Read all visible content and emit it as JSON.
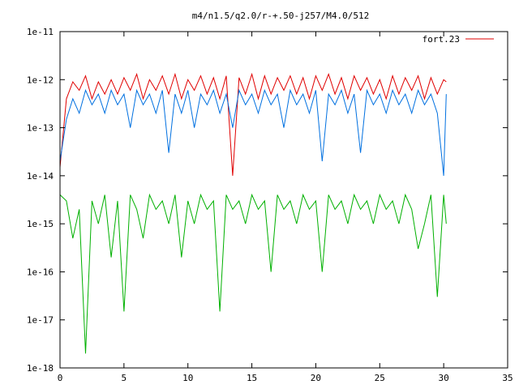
{
  "chart_data": {
    "type": "line",
    "title": "m4/n1.5/q2.0/r-+.50-j257/M4.0/512",
    "xlabel": "",
    "ylabel": "",
    "xlim": [
      0,
      35
    ],
    "ylim": [
      1e-18,
      1e-11
    ],
    "y_scale": "log",
    "grid": false,
    "legend_position": "top-right",
    "x_ticks": [
      0,
      5,
      10,
      15,
      20,
      25,
      30,
      35
    ],
    "x_tick_labels": [
      "0",
      "5",
      "10",
      "15",
      "20",
      "25",
      "30",
      "35"
    ],
    "y_ticks": [
      1e-18,
      1e-17,
      1e-16,
      1e-15,
      1e-14,
      1e-13,
      1e-12,
      1e-11
    ],
    "y_tick_labels": [
      "1e-18",
      "1e-17",
      "1e-16",
      "1e-15",
      "1e-14",
      "1e-13",
      "1e-12",
      "1e-11"
    ],
    "series": [
      {
        "name": "fort.23",
        "color": "#e00000",
        "x": [
          0,
          0.5,
          1,
          1.5,
          2,
          2.5,
          3,
          3.5,
          4,
          4.5,
          5,
          5.5,
          6,
          6.5,
          7,
          7.5,
          8,
          8.5,
          9,
          9.5,
          10,
          10.5,
          11,
          11.5,
          12,
          12.5,
          13,
          13.5,
          14,
          14.5,
          15,
          15.5,
          16,
          16.5,
          17,
          17.5,
          18,
          18.5,
          19,
          19.5,
          20,
          20.5,
          21,
          21.5,
          22,
          22.5,
          23,
          23.5,
          24,
          24.5,
          25,
          25.5,
          26,
          26.5,
          27,
          27.5,
          28,
          28.5,
          29,
          29.5,
          30,
          30.2
        ],
        "y": [
          1.5e-14,
          4e-13,
          9e-13,
          6e-13,
          1.2e-12,
          4e-13,
          9e-13,
          5e-13,
          1e-12,
          5e-13,
          1.1e-12,
          6e-13,
          1.3e-12,
          4e-13,
          1e-12,
          6e-13,
          1.2e-12,
          5e-13,
          1.3e-12,
          4e-13,
          1e-12,
          6e-13,
          1.2e-12,
          5e-13,
          1.1e-12,
          4e-13,
          1.2e-12,
          1e-14,
          1.1e-12,
          5e-13,
          1.3e-12,
          4e-13,
          1.2e-12,
          5e-13,
          1.1e-12,
          6e-13,
          1.2e-12,
          5e-13,
          1.1e-12,
          4e-13,
          1.2e-12,
          6e-13,
          1.3e-12,
          5e-13,
          1.1e-12,
          4e-13,
          1.2e-12,
          6e-13,
          1.1e-12,
          5e-13,
          1e-12,
          4e-13,
          1.2e-12,
          5e-13,
          1.1e-12,
          6e-13,
          1.2e-12,
          4e-13,
          1.1e-12,
          5e-13,
          1e-12,
          9e-13
        ]
      },
      {
        "color": "#0070e0",
        "x": [
          0,
          0.5,
          1,
          1.5,
          2,
          2.5,
          3,
          3.5,
          4,
          4.5,
          5,
          5.5,
          6,
          6.5,
          7,
          7.5,
          8,
          8.5,
          9,
          9.5,
          10,
          10.5,
          11,
          11.5,
          12,
          12.5,
          13,
          13.5,
          14,
          14.5,
          15,
          15.5,
          16,
          16.5,
          17,
          17.5,
          18,
          18.5,
          19,
          19.5,
          20,
          20.5,
          21,
          21.5,
          22,
          22.5,
          23,
          23.5,
          24,
          24.5,
          25,
          25.5,
          26,
          26.5,
          27,
          27.5,
          28,
          28.5,
          29,
          29.5,
          30,
          30.2
        ],
        "y": [
          2e-14,
          1.5e-13,
          4e-13,
          2e-13,
          6e-13,
          3e-13,
          5e-13,
          2e-13,
          6e-13,
          3e-13,
          5e-13,
          1e-13,
          6e-13,
          3e-13,
          5e-13,
          2e-13,
          6e-13,
          3e-14,
          5e-13,
          2e-13,
          6e-13,
          1e-13,
          5e-13,
          3e-13,
          6e-13,
          2e-13,
          5e-13,
          1e-13,
          6e-13,
          3e-13,
          5e-13,
          2e-13,
          6e-13,
          3e-13,
          5e-13,
          1e-13,
          6e-13,
          3e-13,
          5e-13,
          2e-13,
          6e-13,
          2e-14,
          5e-13,
          3e-13,
          6e-13,
          2e-13,
          5e-13,
          3e-14,
          6e-13,
          3e-13,
          5e-13,
          2e-13,
          6e-13,
          3e-13,
          5e-13,
          2e-13,
          6e-13,
          3e-13,
          5e-13,
          2e-13,
          1e-14,
          5e-13
        ]
      },
      {
        "color": "#00b000",
        "x": [
          0,
          0.5,
          1,
          1.5,
          2,
          2.5,
          3,
          3.5,
          4,
          4.5,
          5,
          5.5,
          6,
          6.5,
          7,
          7.5,
          8,
          8.5,
          9,
          9.5,
          10,
          10.5,
          11,
          11.5,
          12,
          12.5,
          13,
          13.5,
          14,
          14.5,
          15,
          15.5,
          16,
          16.5,
          17,
          17.5,
          18,
          18.5,
          19,
          19.5,
          20,
          20.5,
          21,
          21.5,
          22,
          22.5,
          23,
          23.5,
          24,
          24.5,
          25,
          25.5,
          26,
          26.5,
          27,
          27.5,
          28,
          28.5,
          29,
          29.5,
          30,
          30.2
        ],
        "y": [
          4e-15,
          3e-15,
          5e-16,
          2e-15,
          2e-18,
          3e-15,
          1e-15,
          4e-15,
          2e-16,
          3e-15,
          1.5e-17,
          4e-15,
          2e-15,
          5e-16,
          4e-15,
          2e-15,
          3e-15,
          1e-15,
          4e-15,
          2e-16,
          3e-15,
          1e-15,
          4e-15,
          2e-15,
          3e-15,
          1.5e-17,
          4e-15,
          2e-15,
          3e-15,
          1e-15,
          4e-15,
          2e-15,
          3e-15,
          1e-16,
          4e-15,
          2e-15,
          3e-15,
          1e-15,
          4e-15,
          2e-15,
          3e-15,
          1e-16,
          4e-15,
          2e-15,
          3e-15,
          1e-15,
          4e-15,
          2e-15,
          3e-15,
          1e-15,
          4e-15,
          2e-15,
          3e-15,
          1e-15,
          4e-15,
          2e-15,
          3e-16,
          1e-15,
          4e-15,
          3e-17,
          4e-15,
          1e-15
        ]
      }
    ]
  }
}
